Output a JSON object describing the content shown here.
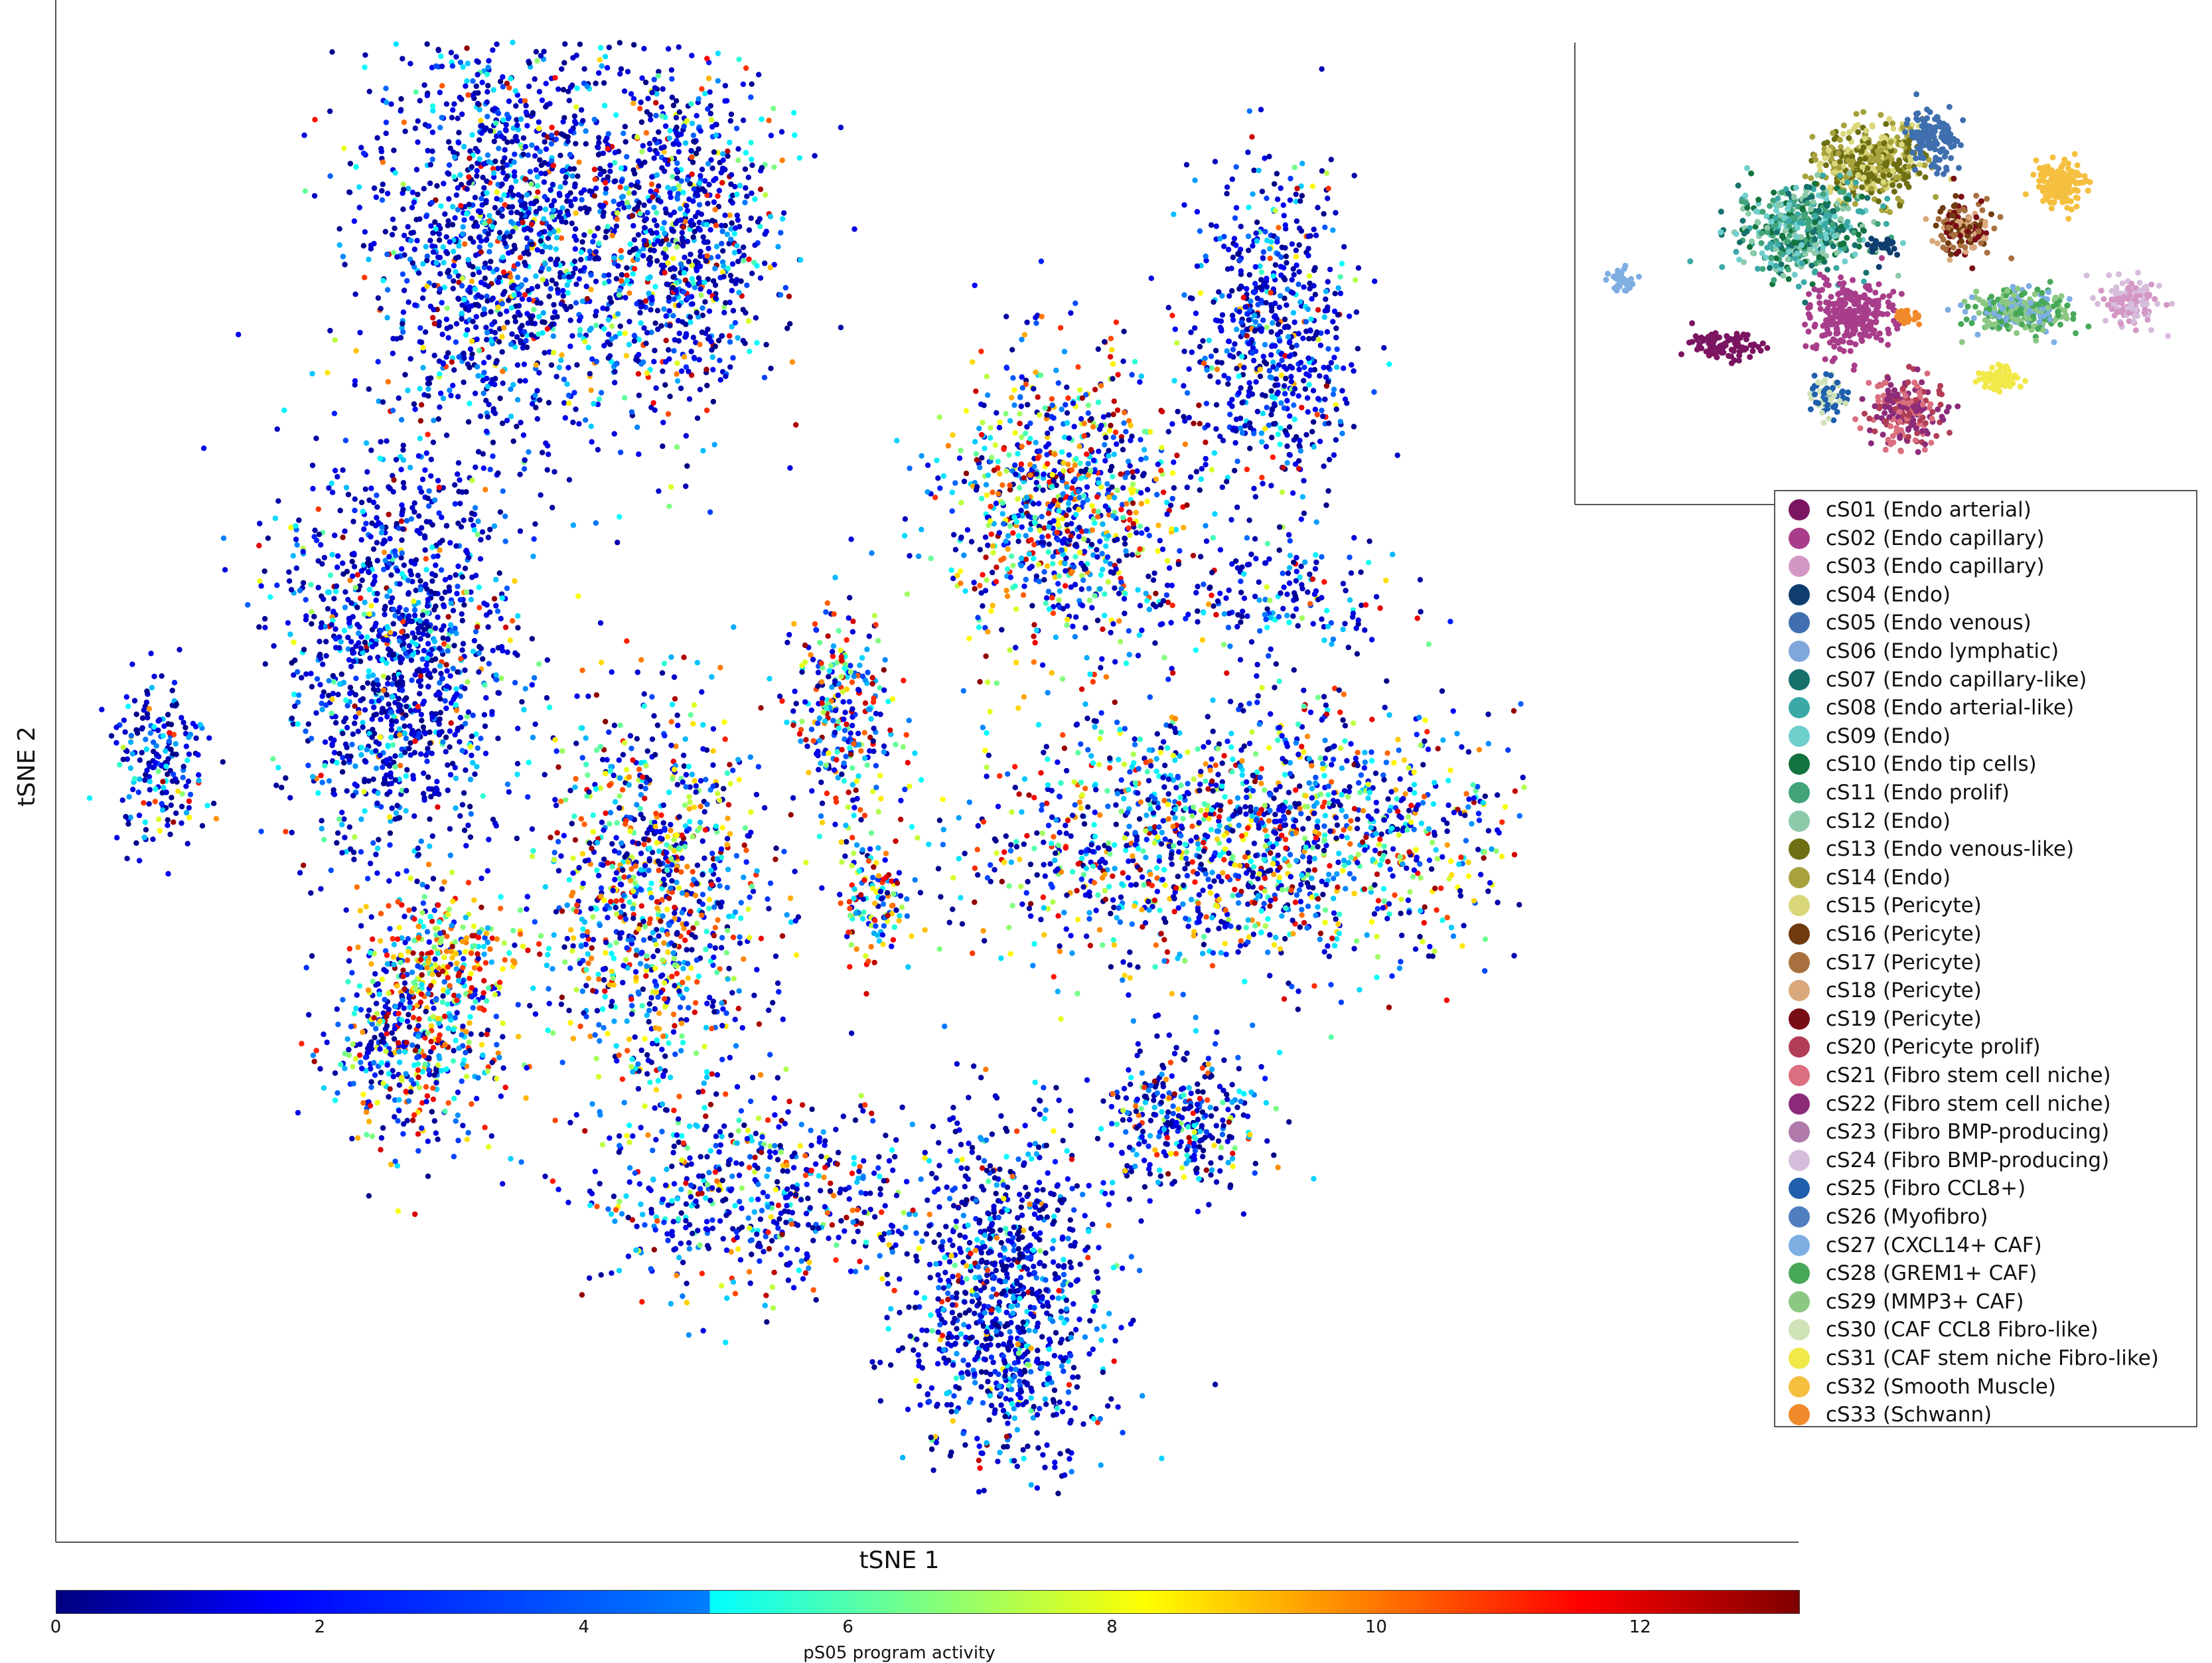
{
  "chart_data": {
    "type": "scatter",
    "main": {
      "xlabel": "tSNE 1",
      "ylabel": "tSNE 2",
      "color_by": "pS05 program activity",
      "colorbar": {
        "min": 0,
        "max": 13.2,
        "ticks": [
          0,
          2,
          4,
          6,
          8,
          10,
          12
        ],
        "label": "pS05 program activity",
        "colormap": "jet"
      },
      "clusters": [
        {
          "x": 0.3,
          "y": 0.86,
          "spread": [
            0.08,
            0.14
          ],
          "n": 1400,
          "hot": 0.12
        },
        {
          "x": 0.42,
          "y": 0.86,
          "spread": [
            0.06,
            0.11
          ],
          "n": 900,
          "hot": 0.18
        },
        {
          "x": 0.23,
          "y": 0.58,
          "spread": [
            0.07,
            0.12
          ],
          "n": 1200,
          "hot": 0.1
        },
        {
          "x": 0.4,
          "y": 0.42,
          "spread": [
            0.07,
            0.12
          ],
          "n": 1000,
          "hot": 0.4
        },
        {
          "x": 0.24,
          "y": 0.32,
          "spread": [
            0.05,
            0.06
          ],
          "n": 450,
          "hot": 0.35
        },
        {
          "x": 0.26,
          "y": 0.38,
          "spread": [
            0.05,
            0.04
          ],
          "n": 250,
          "hot": 0.75
        },
        {
          "x": 0.68,
          "y": 0.68,
          "spread": [
            0.07,
            0.09
          ],
          "n": 900,
          "hot": 0.45
        },
        {
          "x": 0.82,
          "y": 0.79,
          "spread": [
            0.05,
            0.1
          ],
          "n": 650,
          "hot": 0.08
        },
        {
          "x": 0.8,
          "y": 0.46,
          "spread": [
            0.17,
            0.08
          ],
          "n": 1600,
          "hot": 0.38
        },
        {
          "x": 0.53,
          "y": 0.54,
          "spread": [
            0.03,
            0.06
          ],
          "n": 280,
          "hot": 0.45
        },
        {
          "x": 0.55,
          "y": 0.42,
          "spread": [
            0.02,
            0.04
          ],
          "n": 130,
          "hot": 0.55
        },
        {
          "x": 0.07,
          "y": 0.51,
          "spread": [
            0.03,
            0.05
          ],
          "n": 200,
          "hot": 0.1
        },
        {
          "x": 0.64,
          "y": 0.15,
          "spread": [
            0.06,
            0.11
          ],
          "n": 1000,
          "hot": 0.08
        },
        {
          "x": 0.47,
          "y": 0.22,
          "spread": [
            0.1,
            0.06
          ],
          "n": 550,
          "hot": 0.25
        },
        {
          "x": 0.76,
          "y": 0.27,
          "spread": [
            0.05,
            0.04
          ],
          "n": 320,
          "hot": 0.18
        },
        {
          "x": 0.82,
          "y": 0.62,
          "spread": [
            0.08,
            0.04
          ],
          "n": 180,
          "hot": 0.12
        }
      ]
    },
    "inset": {
      "type": "scatter",
      "legend": [
        {
          "label": "cS01 (Endo arterial)",
          "color": "#7b1461"
        },
        {
          "label": "cS02 (Endo capillary)",
          "color": "#a83d8b"
        },
        {
          "label": "cS03 (Endo capillary)",
          "color": "#d397c5"
        },
        {
          "label": "cS04 (Endo)",
          "color": "#0f3e6e"
        },
        {
          "label": "cS05 (Endo venous)",
          "color": "#3f6fae"
        },
        {
          "label": "cS06 (Endo lymphatic)",
          "color": "#7fa7db"
        },
        {
          "label": "cS07 (Endo capillary-like)",
          "color": "#17706b"
        },
        {
          "label": "cS08 (Endo arterial-like)",
          "color": "#3aa9a6"
        },
        {
          "label": "cS09 (Endo)",
          "color": "#6fcfcb"
        },
        {
          "label": "cS10 (Endo tip cells)",
          "color": "#12733f"
        },
        {
          "label": "cS11 (Endo prolif)",
          "color": "#42a47a"
        },
        {
          "label": "cS12 (Endo)",
          "color": "#8dcaa9"
        },
        {
          "label": "cS13 (Endo venous-like)",
          "color": "#6e6f12"
        },
        {
          "label": "cS14 (Endo)",
          "color": "#a7a23c"
        },
        {
          "label": "cS15 (Pericyte)",
          "color": "#d9d77a"
        },
        {
          "label": "cS16 (Pericyte)",
          "color": "#6f3b0e"
        },
        {
          "label": "cS17 (Pericyte)",
          "color": "#a8703f"
        },
        {
          "label": "cS18 (Pericyte)",
          "color": "#d9a97d"
        },
        {
          "label": "cS19 (Pericyte)",
          "color": "#780d15"
        },
        {
          "label": "cS20 (Pericyte prolif)",
          "color": "#b13d56"
        },
        {
          "label": "cS21 (Fibro stem cell niche)",
          "color": "#db6f7f"
        },
        {
          "label": "cS22 (Fibro stem cell niche)",
          "color": "#8c2b7a"
        },
        {
          "label": "cS23 (Fibro BMP-producing)",
          "color": "#b07aaa"
        },
        {
          "label": "cS24 (Fibro BMP-producing)",
          "color": "#d7bddc"
        },
        {
          "label": "cS25 (Fibro CCL8+)",
          "color": "#1f5fac"
        },
        {
          "label": "cS26 (Myofibro)",
          "color": "#4f7fc0"
        },
        {
          "label": "cS27 (CXCL14+ CAF)",
          "color": "#7eaee2"
        },
        {
          "label": "cS28 (GREM1+ CAF)",
          "color": "#47a858"
        },
        {
          "label": "cS29 (MMP3+ CAF)",
          "color": "#8cc883"
        },
        {
          "label": "cS30 (CAF CCL8 Fibro-like)",
          "color": "#cfe2b8"
        },
        {
          "label": "cS31 (CAF stem niche Fibro-like)",
          "color": "#f1e84a"
        },
        {
          "label": "cS32 (Smooth Muscle)",
          "color": "#f5bf3f"
        },
        {
          "label": "cS33 (Schwann)",
          "color": "#f08a2a"
        }
      ],
      "blobs": [
        {
          "x": 0.48,
          "y": 0.75,
          "spread": [
            0.09,
            0.09
          ],
          "n": 420,
          "colors": [
            12,
            13,
            14
          ]
        },
        {
          "x": 0.58,
          "y": 0.8,
          "spread": [
            0.04,
            0.07
          ],
          "n": 120,
          "colors": [
            4
          ]
        },
        {
          "x": 0.37,
          "y": 0.6,
          "spread": [
            0.11,
            0.1
          ],
          "n": 500,
          "colors": [
            6,
            7,
            8,
            9,
            10,
            11
          ]
        },
        {
          "x": 0.24,
          "y": 0.33,
          "spread": [
            0.05,
            0.03
          ],
          "n": 90,
          "colors": [
            0
          ]
        },
        {
          "x": 0.45,
          "y": 0.4,
          "spread": [
            0.07,
            0.08
          ],
          "n": 260,
          "colors": [
            1
          ]
        },
        {
          "x": 0.63,
          "y": 0.6,
          "spread": [
            0.05,
            0.06
          ],
          "n": 140,
          "colors": [
            18,
            16,
            15,
            17
          ]
        },
        {
          "x": 0.79,
          "y": 0.7,
          "spread": [
            0.04,
            0.05
          ],
          "n": 160,
          "colors": [
            31
          ]
        },
        {
          "x": 0.72,
          "y": 0.41,
          "spread": [
            0.08,
            0.05
          ],
          "n": 280,
          "colors": [
            27,
            28,
            26
          ]
        },
        {
          "x": 0.9,
          "y": 0.43,
          "spread": [
            0.05,
            0.05
          ],
          "n": 130,
          "colors": [
            23,
            2
          ]
        },
        {
          "x": 0.54,
          "y": 0.18,
          "spread": [
            0.06,
            0.08
          ],
          "n": 220,
          "colors": [
            21,
            20,
            19
          ]
        },
        {
          "x": 0.69,
          "y": 0.26,
          "spread": [
            0.03,
            0.03
          ],
          "n": 80,
          "colors": [
            30
          ]
        },
        {
          "x": 0.41,
          "y": 0.22,
          "spread": [
            0.03,
            0.05
          ],
          "n": 70,
          "colors": [
            24,
            29
          ]
        },
        {
          "x": 0.54,
          "y": 0.4,
          "spread": [
            0.02,
            0.02
          ],
          "n": 30,
          "colors": [
            32
          ]
        },
        {
          "x": 0.08,
          "y": 0.48,
          "spread": [
            0.02,
            0.03
          ],
          "n": 30,
          "colors": [
            26
          ]
        },
        {
          "x": 0.5,
          "y": 0.56,
          "spread": [
            0.02,
            0.02
          ],
          "n": 30,
          "colors": [
            3
          ]
        }
      ]
    }
  }
}
